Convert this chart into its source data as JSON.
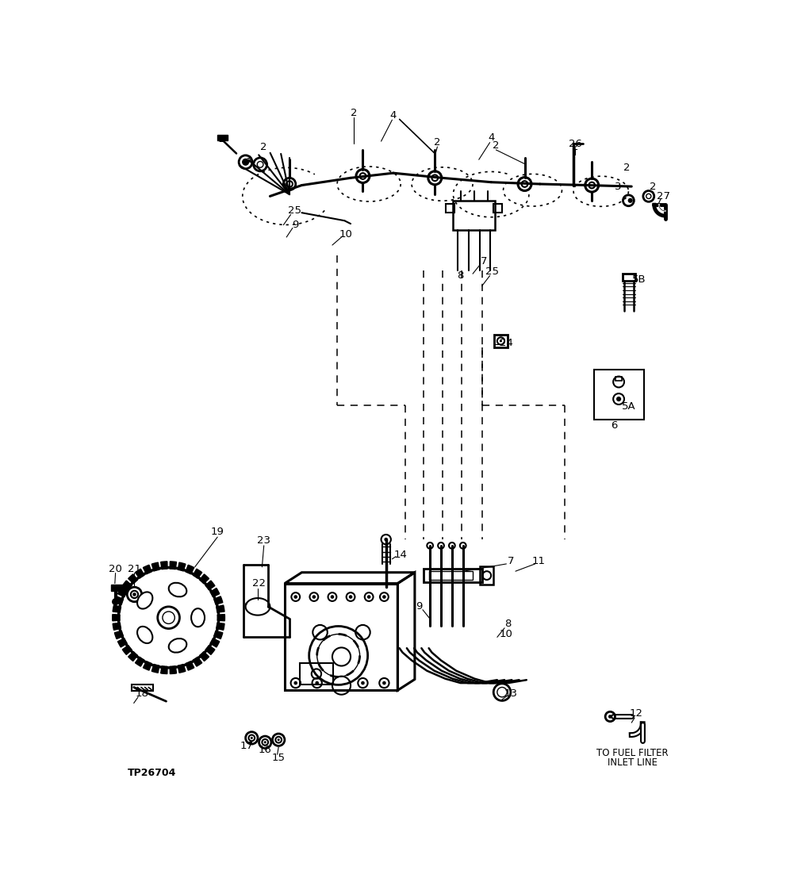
{
  "bg_color": "#ffffff",
  "lc": "#000000",
  "fw": 9.91,
  "fh": 11.12,
  "dpi": 100,
  "watermark": "TP26704",
  "btm1": "TO FUEL FILTER",
  "btm2": "INLET LINE"
}
